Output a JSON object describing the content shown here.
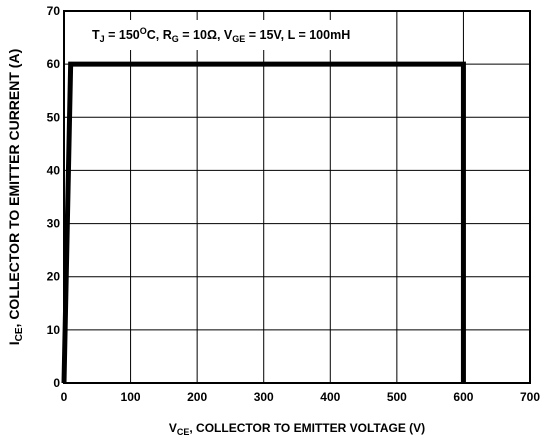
{
  "chart_data": {
    "type": "line",
    "annotation": {
      "parts": [
        "T",
        "J",
        " = 150",
        "O",
        "C, R",
        "G",
        " = 10Ω, V",
        "GE",
        " = 15V, L = 100mH"
      ]
    },
    "xlabel": {
      "main": "V",
      "sub": "CE",
      "rest": ", COLLECTOR TO EMITTER VOLTAGE (V)"
    },
    "ylabel": {
      "main": "I",
      "sub": "CE",
      "rest": ", COLLECTOR TO EMITTER CURRENT (A)"
    },
    "xlim": [
      0,
      700
    ],
    "ylim": [
      0,
      70
    ],
    "xticks": [
      0,
      100,
      200,
      300,
      400,
      500,
      600,
      700
    ],
    "yticks": [
      0,
      10,
      20,
      30,
      40,
      50,
      60,
      70
    ],
    "grid": true,
    "series": [
      {
        "color": "#000000",
        "x": [
          0,
          10,
          600,
          600
        ],
        "y": [
          0,
          60,
          60,
          0
        ]
      }
    ]
  }
}
